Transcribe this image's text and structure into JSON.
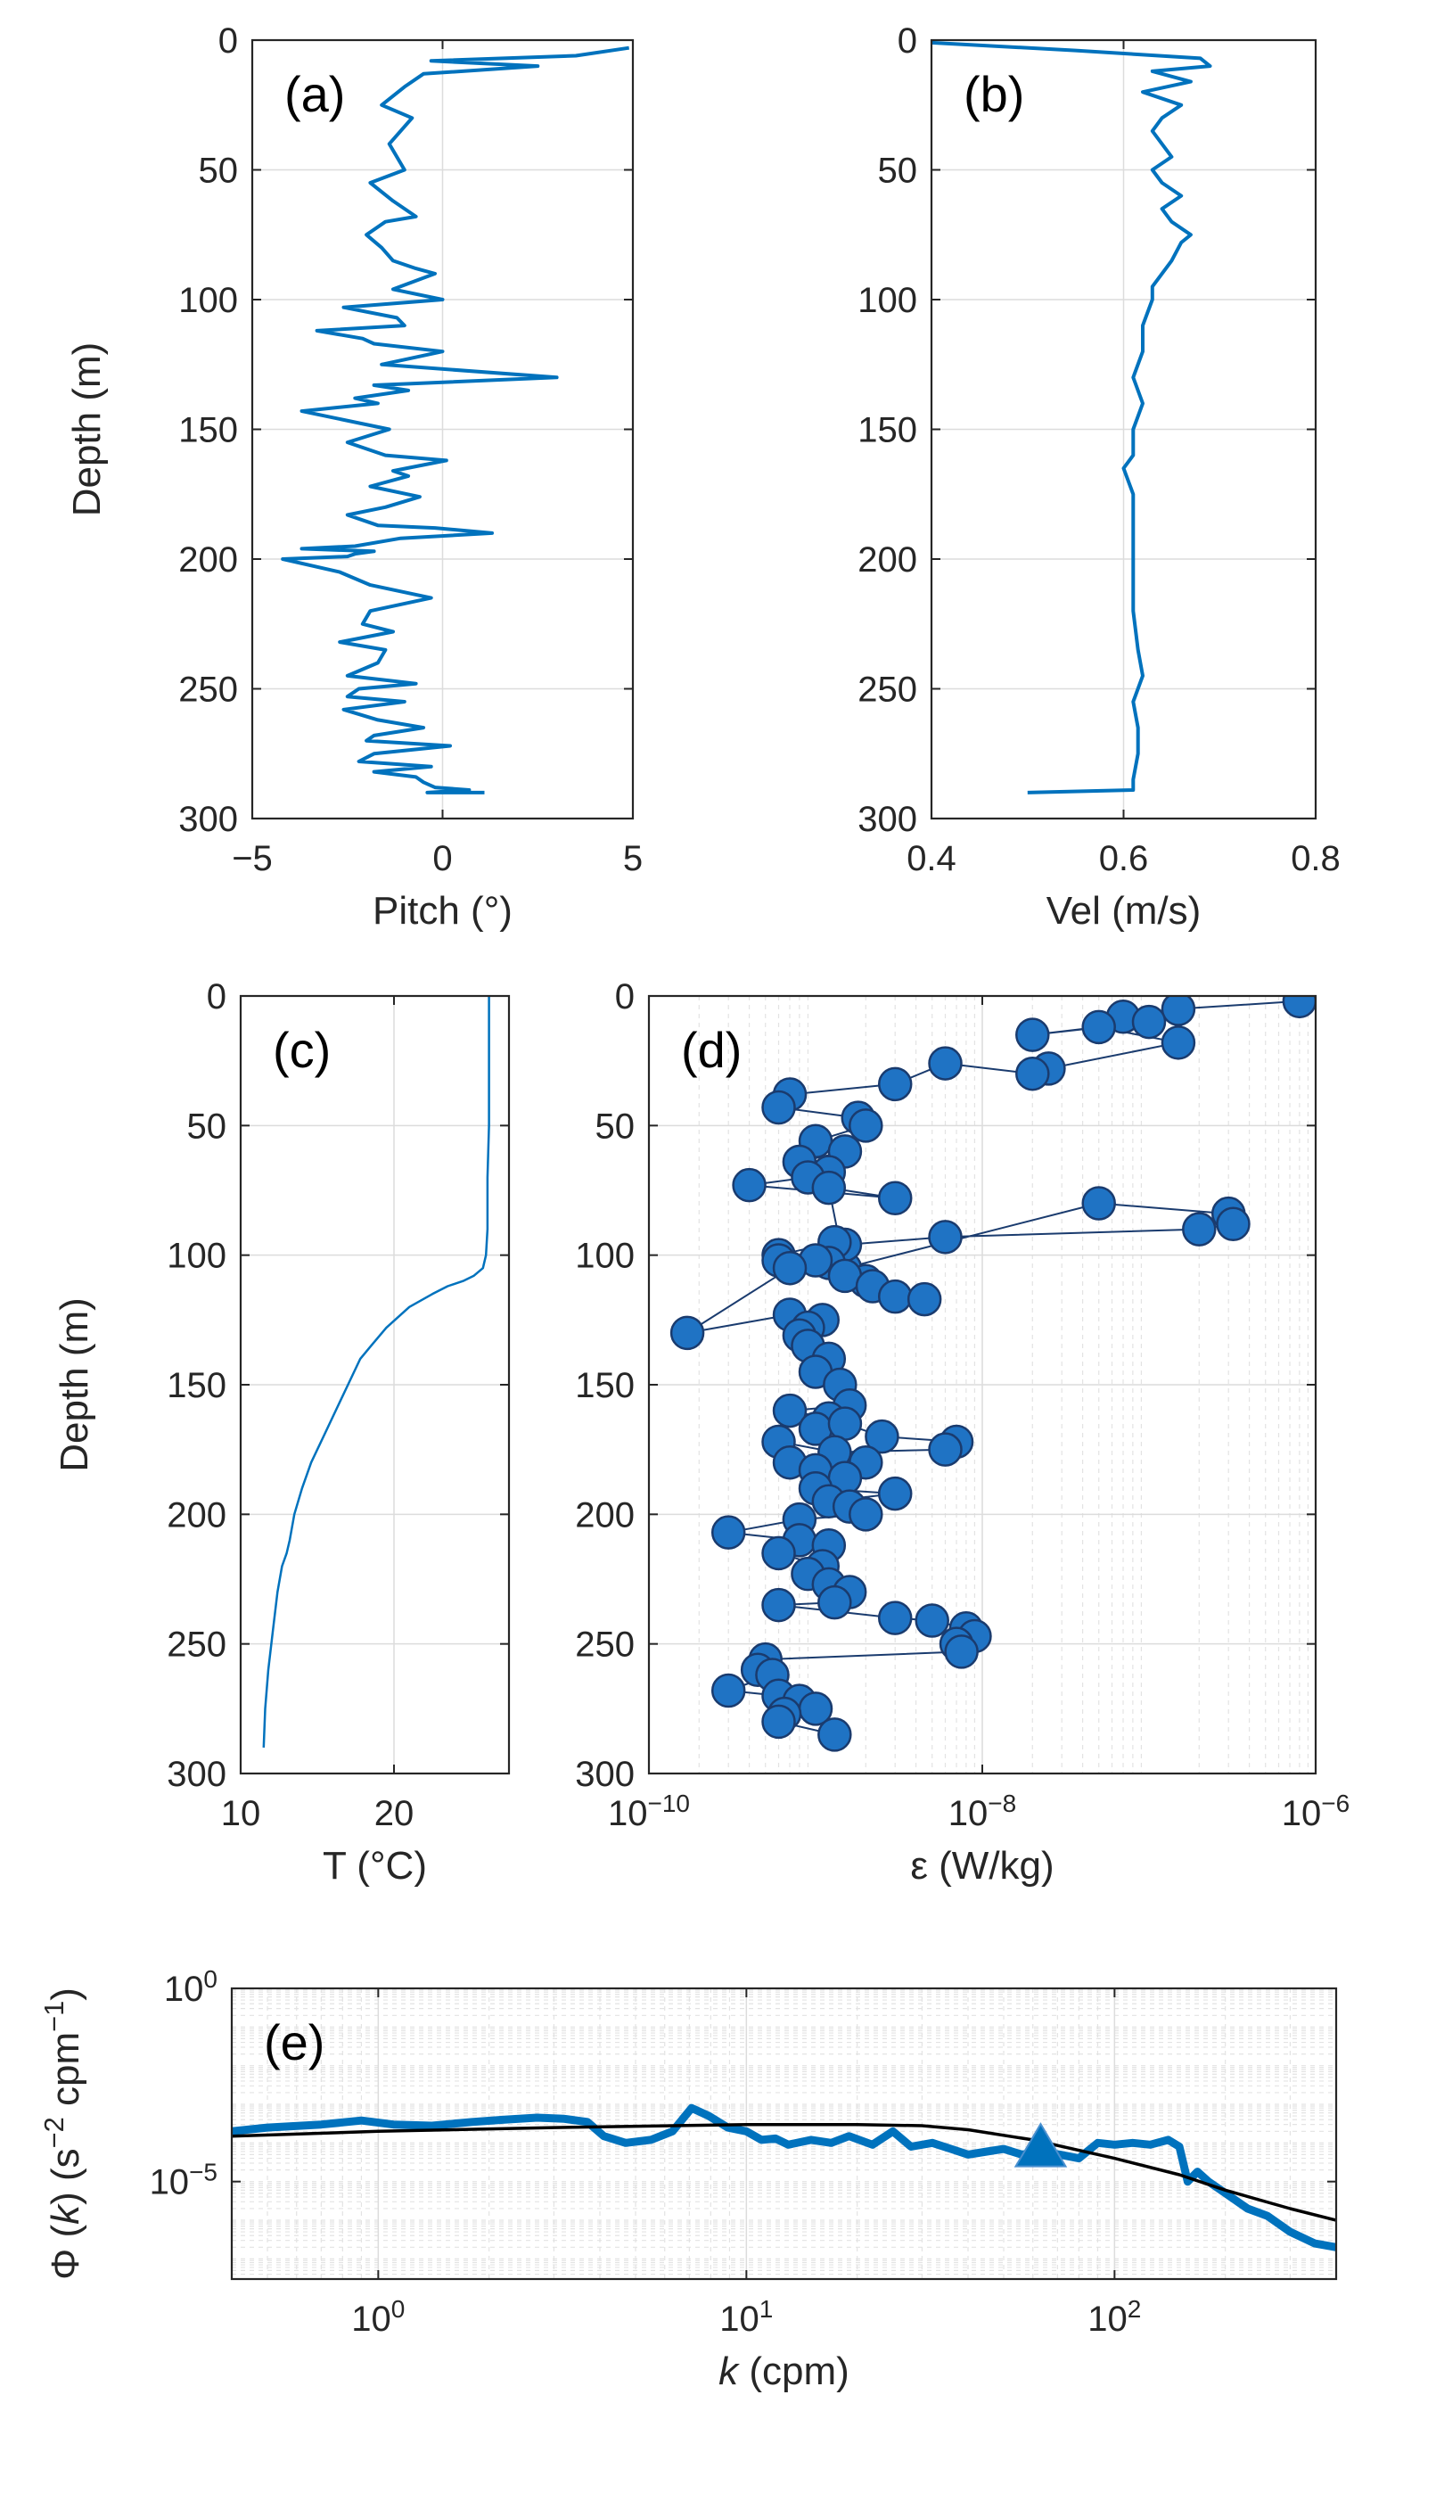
{
  "colors": {
    "series": "#0072bd",
    "marker_edge": "#1a3b6e",
    "model_line": "#000000",
    "axis": "#262626"
  },
  "chart_data": [
    {
      "panel_label": "(a)",
      "type": "line",
      "xlabel": "Pitch  (°)",
      "ylabel": "Depth (m)",
      "xlim": [
        -5,
        5
      ],
      "ylim": [
        0,
        300
      ],
      "y_reversed": true,
      "grid": true,
      "xticks": [
        -5,
        0,
        5
      ],
      "xtick_labels": [
        "−5",
        "0",
        "5"
      ],
      "yticks": [
        0,
        50,
        100,
        150,
        200,
        250,
        300
      ],
      "ytick_labels": [
        "0",
        "50",
        "100",
        "150",
        "200",
        "250",
        "300"
      ],
      "series": [
        {
          "x": [
            4.9,
            3.5,
            -0.3,
            2.5,
            -0.5,
            -1.0,
            -1.6,
            -0.8,
            -1.4,
            -1.0,
            -1.9,
            -1.3,
            -0.7,
            -1.5,
            -2.0,
            -1.6,
            -1.3,
            -0.7,
            -0.2,
            -1.3,
            0.0,
            -2.6,
            -1.2,
            -1.0,
            -3.3,
            -2.1,
            -1.8,
            0.0,
            -1.6,
            3.0,
            -1.8,
            -0.9,
            -2.3,
            -1.7,
            -3.7,
            -1.4,
            -2.5,
            -1.5,
            0.1,
            -1.3,
            -0.9,
            -1.9,
            -0.6,
            -1.5,
            -2.5,
            -1.7,
            -0.2,
            1.3,
            -1.1,
            -2.3,
            -3.7,
            -1.8,
            -2.3,
            -2.5,
            -4.2,
            -2.7,
            -1.9,
            -0.3,
            -1.9,
            -2.1,
            -1.3,
            -2.7,
            -1.5,
            -1.7,
            -2.5,
            -0.7,
            -2.2,
            -2.5,
            -1.0,
            -2.6,
            -1.7,
            -0.5,
            -1.8,
            -2.0,
            0.2,
            -1.8,
            -2.2,
            -0.3,
            -1.8,
            -0.7,
            -0.5,
            -0.2,
            0.7,
            -0.4,
            1.1
          ],
          "y": [
            3,
            6,
            8,
            10,
            13,
            18,
            25,
            30,
            40,
            50,
            55,
            62,
            68,
            70,
            75,
            80,
            85,
            88,
            90,
            96,
            100,
            103,
            107,
            110,
            112,
            115,
            117,
            120,
            125,
            130,
            133,
            135,
            138,
            140,
            143,
            150,
            155,
            160,
            162,
            166,
            168,
            172,
            176,
            180,
            183,
            187,
            188,
            190,
            192,
            195,
            196,
            197,
            198,
            199,
            200,
            205,
            210,
            215,
            220,
            225,
            228,
            232,
            235,
            240,
            245,
            248,
            250,
            253,
            255,
            258,
            262,
            265,
            268,
            270,
            272,
            275,
            278,
            280,
            282,
            284,
            286,
            288,
            289,
            290,
            290
          ]
        }
      ]
    },
    {
      "panel_label": "(b)",
      "type": "line",
      "xlabel": "Vel (m/s)",
      "ylabel": "",
      "xlim": [
        0.4,
        0.8
      ],
      "ylim": [
        0,
        300
      ],
      "y_reversed": true,
      "grid": true,
      "xticks": [
        0.4,
        0.6,
        0.8
      ],
      "xtick_labels": [
        "0.4",
        "0.6",
        "0.8"
      ],
      "yticks": [
        0,
        50,
        100,
        150,
        200,
        250,
        300
      ],
      "ytick_labels": [
        "0",
        "50",
        "100",
        "150",
        "200",
        "250",
        "300"
      ],
      "series": [
        {
          "x": [
            0.4,
            0.55,
            0.68,
            0.69,
            0.63,
            0.67,
            0.62,
            0.66,
            0.64,
            0.63,
            0.64,
            0.65,
            0.63,
            0.64,
            0.66,
            0.64,
            0.65,
            0.67,
            0.66,
            0.65,
            0.64,
            0.63,
            0.63,
            0.62,
            0.62,
            0.61,
            0.62,
            0.61,
            0.61,
            0.6,
            0.61,
            0.61,
            0.61,
            0.61,
            0.61,
            0.615,
            0.62,
            0.61,
            0.615,
            0.615,
            0.61,
            0.61,
            0.61,
            0.5
          ],
          "y": [
            1,
            4,
            7,
            10,
            12,
            16,
            20,
            25,
            30,
            35,
            40,
            45,
            50,
            55,
            60,
            65,
            70,
            75,
            78,
            85,
            90,
            95,
            100,
            110,
            120,
            130,
            140,
            150,
            160,
            165,
            175,
            190,
            200,
            210,
            220,
            235,
            245,
            255,
            265,
            275,
            285,
            288,
            289,
            290
          ]
        }
      ]
    },
    {
      "panel_label": "(c)",
      "type": "line",
      "xlabel": "T (°C)",
      "ylabel": "Depth (m)",
      "xlim": [
        10,
        27.5
      ],
      "ylim": [
        0,
        300
      ],
      "y_reversed": true,
      "grid": true,
      "xticks": [
        10,
        20
      ],
      "xtick_labels": [
        "10",
        "20"
      ],
      "yticks": [
        0,
        50,
        100,
        150,
        200,
        250,
        300
      ],
      "ytick_labels": [
        "0",
        "50",
        "100",
        "150",
        "200",
        "250",
        "300"
      ],
      "series": [
        {
          "x": [
            26.2,
            26.2,
            26.1,
            26.1,
            26.0,
            25.8,
            25.2,
            24.5,
            23.5,
            22.5,
            21.0,
            19.5,
            18.5,
            17.8,
            17.0,
            16.2,
            15.4,
            14.6,
            14.0,
            13.5,
            13.2,
            13.0,
            12.7,
            12.4,
            12.1,
            11.8,
            11.6,
            11.5
          ],
          "y": [
            0,
            50,
            70,
            90,
            100,
            105,
            108,
            110,
            112,
            115,
            120,
            128,
            135,
            140,
            150,
            160,
            170,
            180,
            190,
            200,
            210,
            215,
            220,
            230,
            245,
            260,
            275,
            290
          ]
        }
      ]
    },
    {
      "panel_label": "(d)",
      "type": "scatter",
      "xlabel": "ε (W/kg)",
      "ylabel": "",
      "x_scale": "log",
      "xlim": [
        1e-10,
        1e-06
      ],
      "ylim": [
        0,
        300
      ],
      "y_reversed": true,
      "grid": true,
      "xticks": [
        1e-10,
        1e-08,
        1e-06
      ],
      "xtick_labels": [
        "10^{−10}",
        "10^{−8}",
        "10^{−6}"
      ],
      "yticks": [
        0,
        50,
        100,
        150,
        200,
        250,
        300
      ],
      "ytick_labels": [
        "0",
        "50",
        "100",
        "150",
        "200",
        "250",
        "300"
      ],
      "series": [
        {
          "connected": true,
          "x": [
            8e-07,
            1.5e-07,
            7e-08,
            1e-07,
            2e-08,
            5e-08,
            1.5e-07,
            2.5e-08,
            2e-08,
            6e-09,
            3e-09,
            7e-10,
            6e-10,
            1.8e-09,
            2e-09,
            1e-09,
            1.5e-09,
            8e-10,
            1.2e-09,
            9e-10,
            4e-10,
            3e-09,
            1.2e-09,
            1.5e-09,
            5e-08,
            3e-07,
            3.2e-07,
            2e-07,
            6e-09,
            1.5e-09,
            1.3e-09,
            6e-10,
            6e-10,
            1.2e-09,
            2e-09,
            1.5e-09,
            2.2e-09,
            3e-09,
            4.5e-09,
            1e-09,
            7e-10,
            1.7e-10,
            7e-10,
            1.1e-09,
            9e-10,
            8e-10,
            9e-10,
            1.2e-09,
            1e-09,
            1.4e-09,
            1.6e-09,
            7e-10,
            1.2e-09,
            1e-09,
            1.5e-09,
            2.5e-09,
            7e-09,
            6e-09,
            1.3e-09,
            6e-10,
            7e-10,
            1e-09,
            2e-09,
            1.5e-09,
            1e-09,
            3e-09,
            1.2e-09,
            1.6e-09,
            2e-09,
            8e-10,
            3e-10,
            8e-10,
            1.2e-09,
            6e-10,
            1.1e-09,
            9e-10,
            1.2e-09,
            1.6e-09,
            1.3e-09,
            6e-10,
            3e-09,
            5e-09,
            8e-09,
            9e-09,
            7e-09,
            7.5e-09,
            5e-10,
            4.5e-10,
            5.5e-10,
            3e-10,
            6e-10,
            8e-10,
            1e-09,
            6.5e-10,
            6e-10,
            1.3e-09
          ],
          "y": [
            2,
            5,
            8,
            10,
            15,
            12,
            18,
            28,
            30,
            26,
            34,
            38,
            43,
            47,
            50,
            56,
            60,
            64,
            68,
            70,
            73,
            78,
            74,
            105,
            80,
            84,
            88,
            90,
            93,
            96,
            95,
            100,
            102,
            103,
            110,
            108,
            112,
            116,
            117,
            102,
            105,
            130,
            123,
            125,
            128,
            131,
            135,
            140,
            145,
            150,
            158,
            160,
            163,
            167,
            165,
            170,
            172,
            175,
            176,
            172,
            180,
            183,
            180,
            186,
            190,
            192,
            195,
            197,
            200,
            202,
            207,
            210,
            212,
            215,
            220,
            223,
            227,
            230,
            234,
            235,
            240,
            241,
            244,
            247,
            250,
            253,
            256,
            260,
            262,
            268,
            270,
            272,
            275,
            277,
            280,
            285
          ]
        }
      ]
    },
    {
      "panel_label": "(e)",
      "type": "line",
      "xlabel": "k  (cpm)",
      "ylabel": "Φ (k)  (s^{−2} cpm^{−1})",
      "x_scale": "log",
      "y_scale": "log",
      "xlim": [
        0.4,
        400
      ],
      "ylim": [
        3e-08,
        1
      ],
      "grid": true,
      "xticks": [
        1,
        10,
        100
      ],
      "xtick_labels": [
        "10^{0}",
        "10^{1}",
        "10^{2}"
      ],
      "yticks": [
        1,
        1e-05
      ],
      "ytick_labels": [
        "10^{0}",
        "10^{−5}"
      ],
      "series": [
        {
          "name": "",
          "style": "thick-blue",
          "x": [
            0.4,
            0.5,
            0.7,
            0.9,
            1.1,
            1.4,
            1.8,
            2.2,
            2.7,
            3.2,
            3.7,
            4.1,
            4.7,
            5.5,
            6.3,
            7.1,
            7.9,
            8.9,
            10,
            11,
            12,
            13,
            15,
            17,
            19,
            22,
            25,
            28,
            32,
            36,
            40,
            45,
            50,
            56,
            63,
            71,
            80,
            90,
            100,
            112,
            125,
            140,
            150,
            158,
            168,
            180,
            200,
            230,
            260,
            300,
            350,
            400
          ],
          "y": [
            0.0002,
            0.00025,
            0.0003,
            0.00038,
            0.0003,
            0.00028,
            0.00035,
            0.0004,
            0.00045,
            0.00042,
            0.00035,
            0.00015,
            0.0001,
            0.00012,
            0.0002,
            0.0008,
            0.0005,
            0.00025,
            0.0002,
            0.00012,
            0.00013,
            9e-05,
            0.00012,
            0.0001,
            0.00015,
            9e-05,
            0.0002,
            8e-05,
            0.0001,
            7e-05,
            5e-05,
            6e-05,
            7e-05,
            5e-05,
            6e-05,
            5e-05,
            4e-05,
            0.0001,
            9e-05,
            0.0001,
            9e-05,
            0.00012,
            8e-05,
            1e-05,
            1.8e-05,
            1e-05,
            5e-06,
            2e-06,
            1.3e-06,
            5e-07,
            2.5e-07,
            2e-07
          ]
        },
        {
          "name": "",
          "style": "model-black",
          "x": [
            0.4,
            1,
            3,
            10,
            20,
            30,
            40,
            60,
            100,
            150,
            200,
            300,
            400
          ],
          "y": [
            0.00015,
            0.0002,
            0.00025,
            0.0003,
            0.0003,
            0.00028,
            0.00022,
            0.00012,
            4e-05,
            1.5e-05,
            6e-06,
            2e-06,
            1e-06
          ]
        },
        {
          "name": "",
          "style": "triangle-marker",
          "x": [
            63
          ],
          "y": [
            7e-05
          ]
        }
      ]
    }
  ]
}
